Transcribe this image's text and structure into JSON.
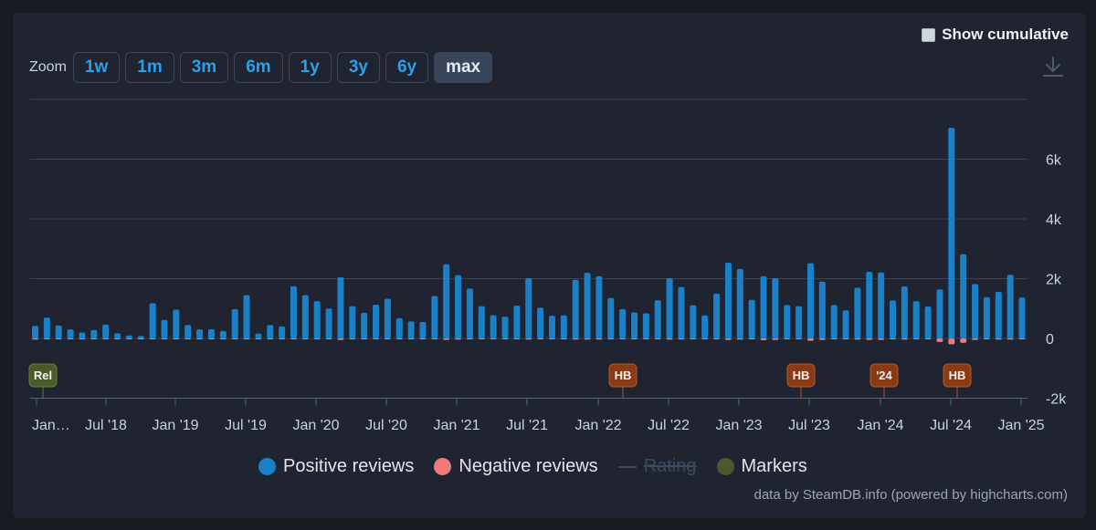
{
  "zoom": {
    "label": "Zoom",
    "buttons": [
      "1w",
      "1m",
      "3m",
      "6m",
      "1y",
      "3y",
      "6y",
      "max"
    ],
    "active": "max"
  },
  "cumulative": {
    "label": "Show cumulative",
    "checked": false
  },
  "download": {
    "icon": "download-icon"
  },
  "legend": {
    "positive": "Positive reviews",
    "negative": "Negative reviews",
    "rating": "Rating",
    "markers": "Markers"
  },
  "credits": "data by SteamDB.info (powered by highcharts.com)",
  "colors": {
    "positive": "#1a80c8",
    "negative": "#ee7a7a",
    "markers": "#4a5a2a",
    "event_marker": "#8a3a14",
    "grid": "#3a4352",
    "text": "#c6d4df"
  },
  "chart_data": {
    "type": "bar",
    "x_axis": {
      "type": "date",
      "tick_labels": [
        "Jan…",
        "Jul '18",
        "Jan '19",
        "Jul '19",
        "Jan '20",
        "Jul '20",
        "Jan '21",
        "Jul '21",
        "Jan '22",
        "Jul '22",
        "Jan '23",
        "Jul '23",
        "Jan '24",
        "Jul '24",
        "Jan '25"
      ]
    },
    "y_axis": {
      "ticks": [
        -2000,
        0,
        2000,
        4000,
        6000
      ],
      "tick_labels": [
        "-2k",
        "0",
        "2k",
        "4k",
        "6k"
      ],
      "ylim": [
        -2000,
        8000
      ],
      "grid": true
    },
    "series": [
      {
        "name": "Positive reviews",
        "values": [
          420,
          700,
          430,
          300,
          200,
          280,
          460,
          170,
          100,
          80,
          1180,
          620,
          960,
          450,
          300,
          310,
          250,
          980,
          1450,
          160,
          450,
          400,
          1750,
          1450,
          1250,
          1000,
          2050,
          1080,
          860,
          1130,
          1330,
          680,
          570,
          550,
          1420,
          2480,
          2120,
          1670,
          1080,
          780,
          730,
          1100,
          2020,
          1030,
          760,
          770,
          1960,
          2200,
          2080,
          1360,
          980,
          870,
          840,
          1280,
          2020,
          1720,
          1110,
          770,
          1500,
          2540,
          2330,
          1290,
          2080,
          2020,
          1120,
          1080,
          2520,
          1900,
          1120,
          940,
          1700,
          2230,
          2210,
          1270,
          1740,
          1250,
          1070,
          1640,
          7050,
          2820,
          1820,
          1380,
          1560,
          2130,
          1370
        ]
      },
      {
        "name": "Negative reviews",
        "values": [
          -40,
          -20,
          -20,
          -10,
          -10,
          -10,
          -20,
          -10,
          -5,
          -5,
          -20,
          -15,
          -20,
          -15,
          -10,
          -10,
          -10,
          -20,
          -30,
          -5,
          -10,
          -10,
          -30,
          -30,
          -30,
          -20,
          -50,
          -20,
          -20,
          -20,
          -30,
          -15,
          -15,
          -15,
          -30,
          -50,
          -40,
          -30,
          -20,
          -20,
          -20,
          -20,
          -40,
          -20,
          -20,
          -20,
          -40,
          -40,
          -40,
          -30,
          -20,
          -20,
          -20,
          -30,
          -40,
          -35,
          -25,
          -20,
          -30,
          -50,
          -40,
          -30,
          -60,
          -50,
          -30,
          -30,
          -80,
          -50,
          -30,
          -30,
          -40,
          -50,
          -50,
          -30,
          -40,
          -30,
          -30,
          -120,
          -200,
          -150,
          -50,
          -30,
          -40,
          -40,
          -30
        ]
      }
    ],
    "markers": [
      {
        "label": "Rel",
        "kind": "release",
        "date": "2018-01"
      },
      {
        "label": "HB",
        "kind": "event",
        "date": "2022-03"
      },
      {
        "label": "HB",
        "kind": "event",
        "date": "2023-06"
      },
      {
        "label": "'24",
        "kind": "event",
        "date": "2024-01"
      },
      {
        "label": "HB",
        "kind": "event",
        "date": "2024-07"
      }
    ]
  }
}
